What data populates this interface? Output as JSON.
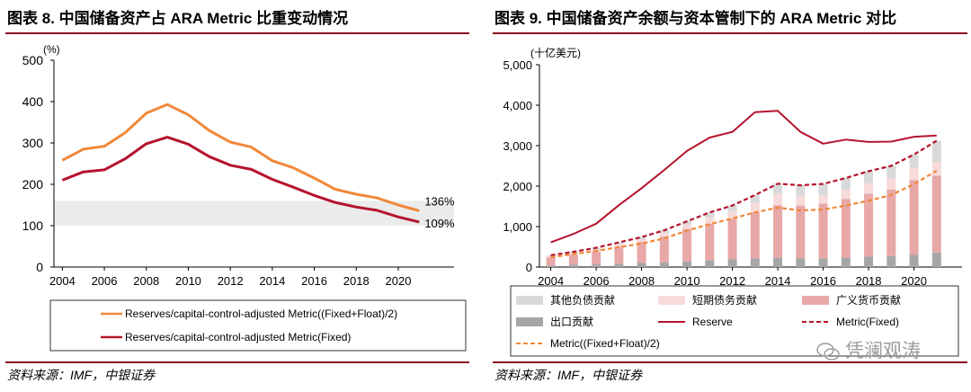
{
  "left": {
    "title": "图表 8. 中国储备资产占 ARA Metric 比重变动情况",
    "source": "资料来源：IMF，中银证券",
    "chart_data": {
      "type": "line",
      "title": "图表 8. 中国储备资产占 ARA Metric 比重变动情况",
      "ylabel": "(%)",
      "ylim": [
        0,
        500
      ],
      "yticks": [
        "0",
        "100",
        "200",
        "300",
        "400",
        "500"
      ],
      "xticks": [
        "2004",
        "2006",
        "2008",
        "2010",
        "2012",
        "2014",
        "2016",
        "2018",
        "2020"
      ],
      "x": [
        2004,
        2005,
        2006,
        2007,
        2008,
        2009,
        2010,
        2011,
        2012,
        2013,
        2014,
        2015,
        2016,
        2017,
        2018,
        2019,
        2020,
        2021
      ],
      "band": [
        100,
        160
      ],
      "series": [
        {
          "name": "Reserves/capital-control-adjusted Metric((Fixed+Float)/2)",
          "color": "#f0883a",
          "values": [
            258,
            285,
            292,
            325,
            372,
            393,
            368,
            330,
            302,
            290,
            257,
            240,
            215,
            188,
            176,
            167,
            150,
            136
          ]
        },
        {
          "name": "Reserves/capital-control-adjusted Metric(Fixed)",
          "color": "#b5132e",
          "values": [
            210,
            230,
            235,
            262,
            298,
            314,
            297,
            267,
            246,
            236,
            212,
            193,
            173,
            156,
            145,
            137,
            121,
            109
          ]
        }
      ],
      "end_labels": [
        "136%",
        "109%"
      ]
    }
  },
  "right": {
    "title": "图表 9. 中国储备资产余额与资本管制下的 ARA Metric 对比",
    "source": "资料来源：IMF，中银证券",
    "watermark": "凭澜观涛",
    "chart_data": {
      "type": "bar",
      "title": "图表 9. 中国储备资产余额与资本管制下的 ARA Metric 对比",
      "ylabel": "(十亿美元)",
      "ylim": [
        0,
        5000
      ],
      "yticks": [
        "0",
        "1,000",
        "2,000",
        "3,000",
        "4,000",
        "5,000"
      ],
      "xticks": [
        "2004",
        "2006",
        "2008",
        "2010",
        "2012",
        "2014",
        "2016",
        "2018",
        "2020"
      ],
      "x": [
        2004,
        2005,
        2006,
        2007,
        2008,
        2009,
        2010,
        2011,
        2012,
        2013,
        2014,
        2015,
        2016,
        2017,
        2018,
        2019,
        2020,
        2021
      ],
      "bar_series": [
        {
          "name": "出口贡献",
          "color": "#a6a6a6",
          "values": [
            40,
            55,
            65,
            80,
            100,
            110,
            140,
            170,
            190,
            210,
            230,
            220,
            215,
            230,
            260,
            270,
            300,
            360
          ]
        },
        {
          "name": "广义货币贡献",
          "color": "#e8a8a8",
          "values": [
            200,
            250,
            320,
            420,
            520,
            650,
            800,
            900,
            1000,
            1150,
            1300,
            1300,
            1350,
            1450,
            1550,
            1650,
            1850,
            1900
          ]
        },
        {
          "name": "短期债务贡献",
          "color": "#f7dada",
          "values": [
            30,
            40,
            50,
            60,
            60,
            80,
            110,
            160,
            180,
            220,
            280,
            230,
            210,
            230,
            260,
            280,
            300,
            340
          ]
        },
        {
          "name": "其他负债贡献",
          "color": "#d9d9d9",
          "values": [
            20,
            30,
            40,
            50,
            60,
            70,
            80,
            120,
            150,
            200,
            250,
            270,
            280,
            290,
            300,
            300,
            330,
            520
          ]
        }
      ],
      "line_series": [
        {
          "name": "Reserve",
          "color": "#b5132e",
          "dash": "solid",
          "values": [
            610,
            820,
            1070,
            1530,
            1950,
            2400,
            2870,
            3200,
            3340,
            3830,
            3860,
            3340,
            3050,
            3150,
            3090,
            3100,
            3220,
            3250
          ]
        },
        {
          "name": "Metric(Fixed)",
          "color": "#b5132e",
          "dash": "dashed",
          "values": [
            290,
            375,
            475,
            610,
            740,
            910,
            1130,
            1350,
            1520,
            1780,
            2060,
            2020,
            2055,
            2200,
            2370,
            2500,
            2780,
            3120
          ]
        },
        {
          "name": "Metric((Fixed+Float)/2)",
          "color": "#f0883a",
          "dash": "dashed",
          "values": [
            240,
            320,
            400,
            490,
            580,
            710,
            900,
            1060,
            1200,
            1350,
            1470,
            1400,
            1420,
            1520,
            1640,
            1780,
            2050,
            2380
          ]
        }
      ],
      "legend": [
        "其他负债贡献",
        "短期债务贡献",
        "广义货币贡献",
        "出口贡献",
        "Reserve",
        "Metric(Fixed)",
        "Metric((Fixed+Float)/2)"
      ]
    }
  }
}
